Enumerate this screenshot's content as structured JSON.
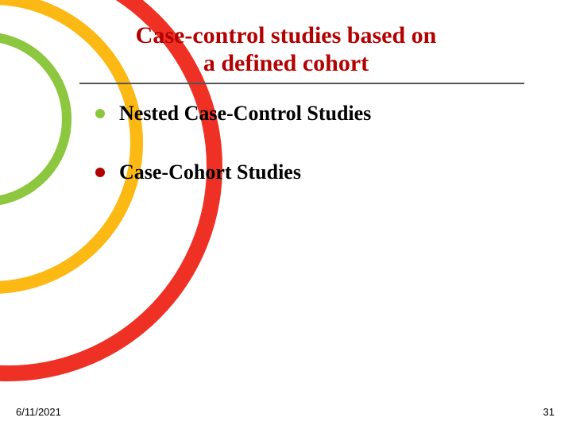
{
  "title": {
    "line1": "Case-control studies based on",
    "line2": "a defined cohort"
  },
  "title_color": "#b30000",
  "title_fontsize": 30,
  "underline_color": "#555555",
  "bullets": [
    {
      "text": "Nested Case-Control Studies",
      "dot_color": "#8dc63f"
    },
    {
      "text": "Case-Cohort Studies",
      "dot_color": "#b30000"
    }
  ],
  "bullet_fontsize": 26,
  "footer": {
    "date": "6/11/2021",
    "page": "31"
  },
  "swirls": {
    "outer_color": "#ee3124",
    "mid_color": "#fdb913",
    "inner_color": "#8dc63f"
  },
  "background_color": "#ffffff"
}
